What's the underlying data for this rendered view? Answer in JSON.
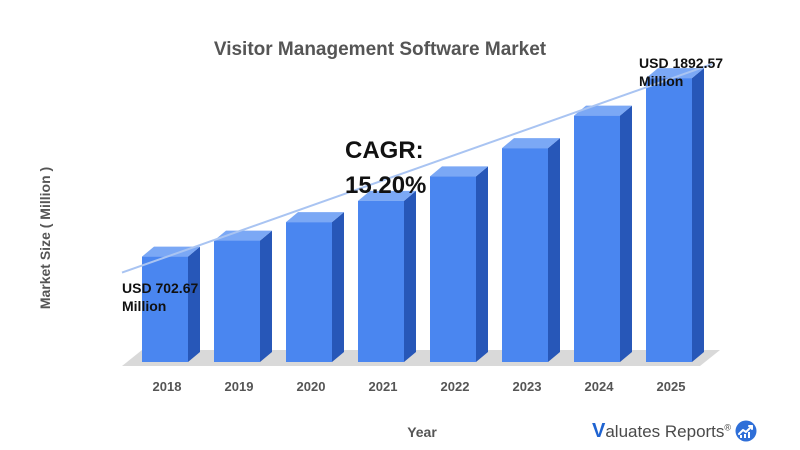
{
  "chart_data": {
    "type": "bar",
    "title": "Visitor Management Software Market",
    "xlabel": "Year",
    "ylabel": "Market Size ( Million )",
    "categories": [
      "2018",
      "2019",
      "2020",
      "2021",
      "2022",
      "2023",
      "2024",
      "2025"
    ],
    "values": [
      702.67,
      809.5,
      932.5,
      1074.3,
      1237.6,
      1425.7,
      1642.4,
      1892.57
    ],
    "ylim": [
      0,
      2000
    ],
    "grid": false,
    "annotations": {
      "start": [
        "USD 702.67",
        "Million"
      ],
      "end": [
        "USD 1892.57",
        "Million"
      ],
      "cagr": [
        "CAGR:",
        "15.20%"
      ]
    },
    "colors": {
      "bar_front": "#4a86f0",
      "bar_side": "#2757b8",
      "bar_top": "#7ba8f5",
      "trend_line": "#a9c4f2",
      "floor": "#d9d9d9"
    }
  },
  "brand": {
    "prefix": "V",
    "text": "aluates Reports",
    "registered": "®",
    "icon": "chart-bubble-icon"
  }
}
